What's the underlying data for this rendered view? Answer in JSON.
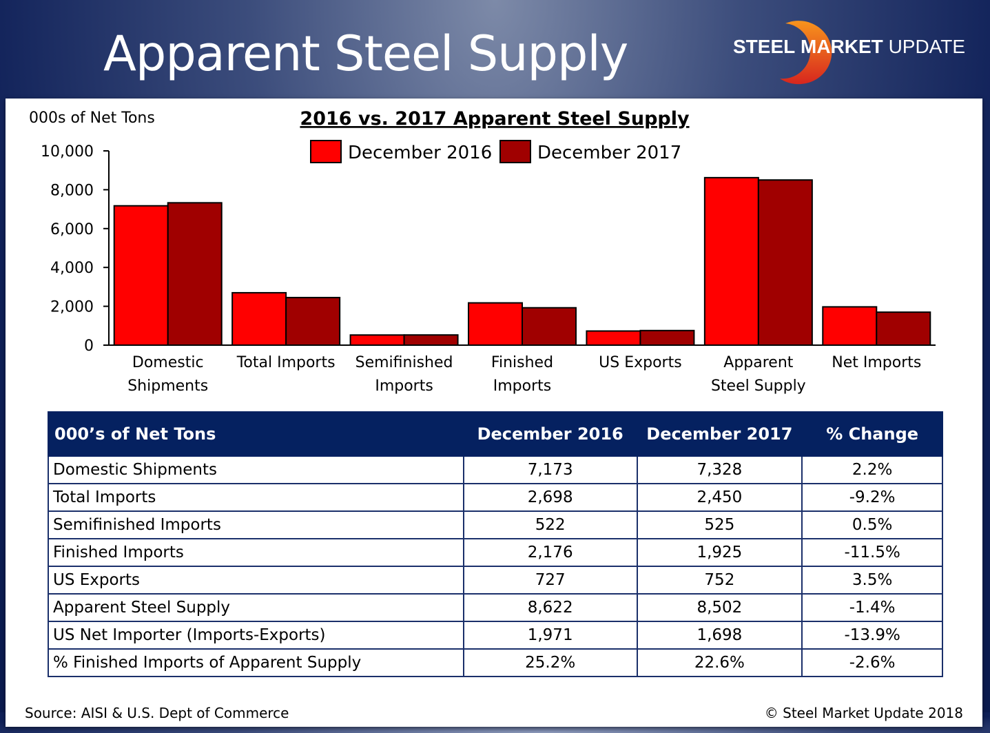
{
  "header": {
    "title": "Apparent Steel Supply",
    "logo": {
      "part1": "STEEL",
      "part2": "MARKET",
      "part3": "UPDATE",
      "arc_color_top": "#f7941d",
      "arc_color_bottom": "#d7261e"
    }
  },
  "chart_data": {
    "type": "bar",
    "title": "2016 vs. 2017 Apparent Steel Supply",
    "ylabel": "000s of Net Tons",
    "xlabel": "",
    "ylim": [
      0,
      10000
    ],
    "yticks": [
      0,
      2000,
      4000,
      6000,
      8000,
      10000
    ],
    "ytick_labels": [
      "0",
      "2,000",
      "4,000",
      "6,000",
      "8,000",
      "10,000"
    ],
    "grid": false,
    "legend_position": "top-center",
    "categories": [
      [
        "Domestic",
        "Shipments"
      ],
      [
        "Total Imports"
      ],
      [
        "Semifinished",
        "Imports"
      ],
      [
        "Finished",
        "Imports"
      ],
      [
        "US Exports"
      ],
      [
        "Apparent",
        "Steel Supply"
      ],
      [
        "Net Imports"
      ]
    ],
    "series": [
      {
        "name": "December 2016",
        "color": "#ff0000",
        "values": [
          7173,
          2698,
          522,
          2176,
          727,
          8622,
          1971
        ]
      },
      {
        "name": "December 2017",
        "color": "#a00000",
        "values": [
          7328,
          2450,
          525,
          1925,
          752,
          8502,
          1698
        ]
      }
    ]
  },
  "table": {
    "headers": [
      "000’s of Net Tons",
      "December 2016",
      "December 2017",
      "% Change"
    ],
    "rows": [
      [
        "Domestic Shipments",
        "7,173",
        "7,328",
        "2.2%"
      ],
      [
        "Total Imports",
        "2,698",
        "2,450",
        "-9.2%"
      ],
      [
        "Semifinished Imports",
        "522",
        "525",
        "0.5%"
      ],
      [
        "Finished Imports",
        "2,176",
        "1,925",
        "-11.5%"
      ],
      [
        "US Exports",
        "727",
        "752",
        "3.5%"
      ],
      [
        "Apparent Steel Supply",
        "8,622",
        "8,502",
        "-1.4%"
      ],
      [
        "US Net Importer (Imports-Exports)",
        "1,971",
        "1,698",
        "-13.9%"
      ],
      [
        "% Finished Imports of Apparent Supply",
        "25.2%",
        "22.6%",
        "-2.6%"
      ]
    ]
  },
  "footer": {
    "source": "Source:  AISI & U.S. Dept of Commerce",
    "copyright": "©   Steel Market Update 2018"
  }
}
